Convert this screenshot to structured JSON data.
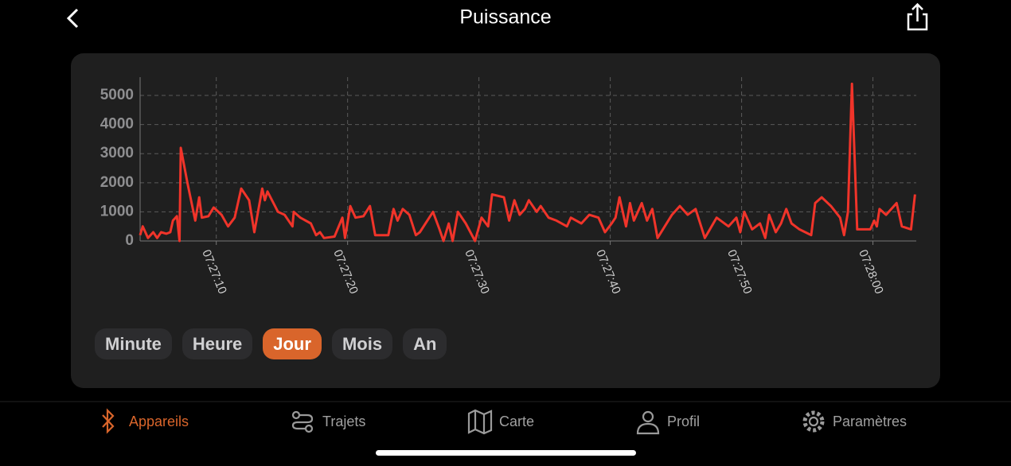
{
  "header": {
    "title": "Puissance"
  },
  "chart_data": {
    "type": "line",
    "color": "#f0342a",
    "x": [
      4.2,
      4.4,
      4.8,
      5.2,
      5.5,
      5.8,
      6.2,
      6.5,
      6.7,
      7.0,
      7.2,
      7.3,
      7.8,
      8.4,
      8.7,
      8.9,
      9.4,
      9.8,
      10.4,
      10.9,
      11.4,
      11.9,
      12.5,
      12.9,
      13.5,
      13.7,
      13.9,
      14.7,
      15.2,
      15.8,
      15.9,
      16.4,
      17.2,
      17.6,
      17.9,
      18.2,
      19.0,
      19.6,
      19.8,
      20.2,
      20.6,
      21.2,
      21.7,
      22.1,
      23.1,
      23.5,
      23.8,
      24.2,
      24.7,
      25.2,
      25.5,
      26.5,
      27.0,
      27.3,
      27.7,
      28.0,
      28.4,
      29.0,
      29.7,
      30.2,
      30.7,
      31.0,
      31.9,
      32.3,
      32.7,
      33.1,
      33.5,
      33.8,
      34.4,
      34.7,
      35.3,
      35.9,
      36.7,
      37.0,
      37.8,
      38.4,
      39.1,
      39.6,
      40.1,
      40.4,
      40.7,
      41.2,
      41.5,
      41.8,
      42.4,
      42.8,
      43.2,
      43.6,
      44.7,
      45.3,
      45.9,
      46.5,
      47.2,
      48.1,
      49.0,
      49.6,
      49.9,
      50.2,
      50.8,
      51.4,
      51.8,
      52.1,
      52.6,
      53.0,
      53.4,
      53.8,
      54.4,
      55.3,
      55.6,
      56.1,
      56.8,
      57.5,
      57.8,
      58.1,
      58.4,
      58.8,
      59.8,
      60.1,
      60.3,
      60.5,
      61.0,
      61.8,
      62.2,
      62.9,
      63.2
    ],
    "values": [
      200,
      500,
      100,
      300,
      100,
      300,
      250,
      300,
      700,
      850,
      0,
      3200,
      2000,
      700,
      1500,
      800,
      850,
      1150,
      900,
      500,
      800,
      1800,
      1400,
      300,
      1800,
      1400,
      1700,
      1000,
      900,
      500,
      1000,
      800,
      600,
      200,
      300,
      100,
      150,
      800,
      100,
      1200,
      800,
      850,
      1200,
      200,
      200,
      1100,
      700,
      1100,
      900,
      200,
      300,
      1000,
      400,
      0,
      600,
      0,
      1000,
      600,
      0,
      800,
      500,
      1600,
      1500,
      700,
      1400,
      900,
      1100,
      1400,
      1000,
      1200,
      800,
      700,
      500,
      800,
      600,
      900,
      800,
      300,
      600,
      800,
      1500,
      500,
      1300,
      700,
      1300,
      700,
      1100,
      100,
      900,
      1200,
      900,
      1100,
      100,
      800,
      500,
      800,
      300,
      1000,
      400,
      600,
      100,
      900,
      300,
      600,
      1100,
      600,
      400,
      200,
      1300,
      1500,
      1200,
      800,
      200,
      1000,
      5400,
      400,
      400,
      700,
      500,
      1100,
      900,
      1300,
      500,
      400,
      1600
    ],
    "xlim": [
      4.2,
      63.3
    ],
    "ylim": [
      0,
      5630
    ],
    "yticks": [
      0,
      1000,
      2000,
      3000,
      4000,
      5000
    ],
    "xticks": [
      {
        "value": 10,
        "label": "07:27:10"
      },
      {
        "value": 20,
        "label": "07:27:20"
      },
      {
        "value": 30,
        "label": "07:27:30"
      },
      {
        "value": 40,
        "label": "07:27:40"
      },
      {
        "value": 50,
        "label": "07:27:50"
      },
      {
        "value": 60,
        "label": "07:28:00"
      }
    ],
    "grid": true
  },
  "periods": {
    "items": [
      "Minute",
      "Heure",
      "Jour",
      "Mois",
      "An"
    ],
    "selected": 2
  },
  "tabs": {
    "items": [
      "Appareils",
      "Trajets",
      "Carte",
      "Profil",
      "Paramètres"
    ],
    "active": 0
  }
}
